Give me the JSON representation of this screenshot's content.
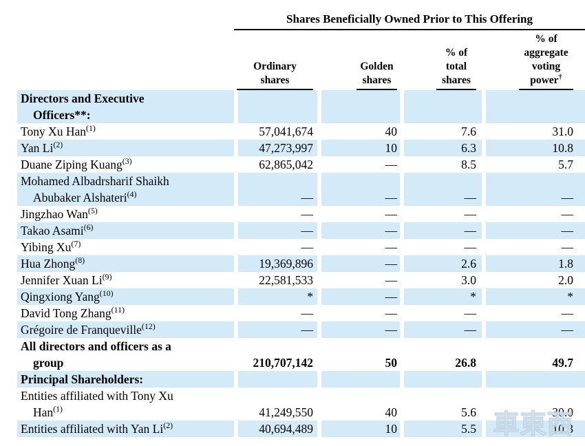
{
  "colors": {
    "row_shade": "#d3eaf8",
    "rule": "#000000",
    "text": "#000000"
  },
  "table": {
    "spanner": "Shares Beneficially Owned Prior to This Offering",
    "columns": [
      {
        "label": "Ordinary\nshares"
      },
      {
        "label": "Golden\nshares"
      },
      {
        "label": "% of\ntotal\nshares"
      },
      {
        "label": "% of\naggregate\nvoting\npower",
        "sup": "†"
      }
    ],
    "rows": [
      {
        "lines": [
          {
            "text": "Directors and Executive"
          },
          {
            "text": "Officers**:"
          }
        ],
        "bold": true,
        "shaded": true,
        "values": [
          "",
          "",
          "",
          ""
        ]
      },
      {
        "lines": [
          {
            "text": "Tony Xu Han",
            "sup": "(1)"
          }
        ],
        "bold": false,
        "shaded": false,
        "values": [
          "57,041,674",
          "40",
          "7.6",
          "31.0"
        ]
      },
      {
        "lines": [
          {
            "text": "Yan Li",
            "sup": "(2)"
          }
        ],
        "bold": false,
        "shaded": true,
        "values": [
          "47,273,997",
          "10",
          "6.3",
          "10.8"
        ]
      },
      {
        "lines": [
          {
            "text": "Duane Ziping Kuang",
            "sup": "(3)"
          }
        ],
        "bold": false,
        "shaded": false,
        "values": [
          "62,865,042",
          "—",
          "8.5",
          "5.7"
        ]
      },
      {
        "lines": [
          {
            "text": "Mohamed Albadrsharif Shaikh"
          },
          {
            "text": "Abubaker Alshateri",
            "sup": "(4)"
          }
        ],
        "bold": false,
        "shaded": true,
        "values": [
          "—",
          "—",
          "—",
          "—"
        ]
      },
      {
        "lines": [
          {
            "text": "Jingzhao Wan",
            "sup": "(5)"
          }
        ],
        "bold": false,
        "shaded": false,
        "values": [
          "—",
          "—",
          "—",
          "—"
        ]
      },
      {
        "lines": [
          {
            "text": "Takao Asami",
            "sup": "(6)"
          }
        ],
        "bold": false,
        "shaded": true,
        "values": [
          "—",
          "—",
          "—",
          "—"
        ]
      },
      {
        "lines": [
          {
            "text": "Yibing Xu",
            "sup": "(7)"
          }
        ],
        "bold": false,
        "shaded": false,
        "values": [
          "—",
          "—",
          "—",
          "—"
        ]
      },
      {
        "lines": [
          {
            "text": "Hua Zhong",
            "sup": "(8)"
          }
        ],
        "bold": false,
        "shaded": true,
        "values": [
          "19,369,896",
          "—",
          "2.6",
          "1.8"
        ]
      },
      {
        "lines": [
          {
            "text": "Jennifer Xuan Li",
            "sup": "(9)"
          }
        ],
        "bold": false,
        "shaded": false,
        "values": [
          "22,581,533",
          "—",
          "3.0",
          "2.0"
        ]
      },
      {
        "lines": [
          {
            "text": "Qingxiong Yang",
            "sup": "(10)"
          }
        ],
        "bold": false,
        "shaded": true,
        "values": [
          "*",
          "—",
          "*",
          "*"
        ]
      },
      {
        "lines": [
          {
            "text": "David Tong Zhang",
            "sup": "(11)"
          }
        ],
        "bold": false,
        "shaded": false,
        "values": [
          "—",
          "—",
          "—",
          "—"
        ]
      },
      {
        "lines": [
          {
            "text": "Grégoire de Franqueville",
            "sup": "(12)"
          }
        ],
        "bold": false,
        "shaded": true,
        "values": [
          "—",
          "—",
          "—",
          "—"
        ]
      },
      {
        "lines": [
          {
            "text": "All directors and officers as a"
          },
          {
            "text": "group"
          }
        ],
        "bold": true,
        "shaded": false,
        "values_bold": true,
        "values": [
          "210,707,142",
          "50",
          "26.8",
          "49.7"
        ]
      },
      {
        "lines": [
          {
            "text": "Principal Shareholders:"
          }
        ],
        "bold": true,
        "shaded": true,
        "values": [
          "",
          "",
          "",
          ""
        ]
      },
      {
        "lines": [
          {
            "text": "Entities affiliated with Tony Xu"
          },
          {
            "text": "Han",
            "sup": "(1)"
          }
        ],
        "bold": false,
        "shaded": false,
        "values": [
          "41,249,550",
          "40",
          "5.6",
          "30.0"
        ]
      },
      {
        "lines": [
          {
            "text": "Entities affiliated with Yan Li",
            "sup": "(2)"
          }
        ],
        "bold": false,
        "shaded": true,
        "values": [
          "40,694,489",
          "10",
          "5.5",
          "10.3"
        ]
      }
    ]
  },
  "watermark": {
    "text": "車東西",
    "icon": "car-roof-icon"
  }
}
